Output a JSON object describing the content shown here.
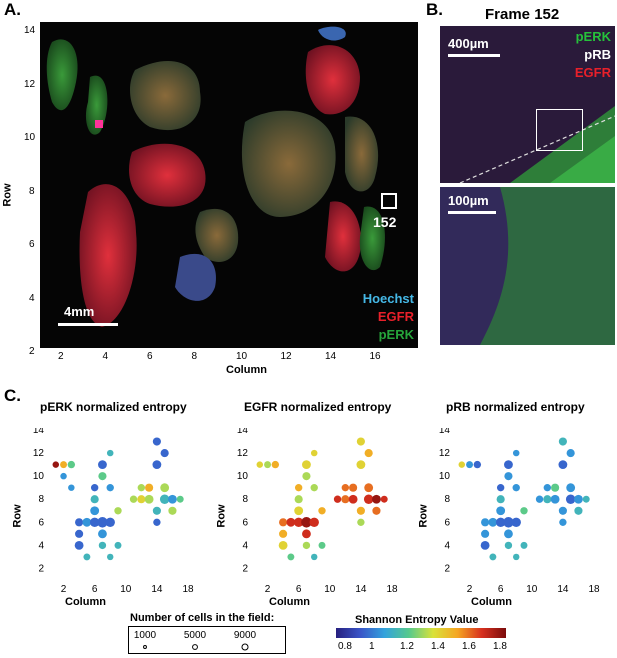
{
  "panel_a": {
    "letter": "A.",
    "xlabel": "Column",
    "ylabel": "Row",
    "xticks": [
      "2",
      "4",
      "6",
      "8",
      "10",
      "12",
      "14",
      "16"
    ],
    "yticks": [
      "14",
      "12",
      "10",
      "8",
      "6",
      "4",
      "2"
    ],
    "scalebar": "4mm",
    "frame_label": "152",
    "legend": [
      {
        "label": "Hoechst",
        "color": "#45b8e6"
      },
      {
        "label": "EGFR",
        "color": "#e8202a"
      },
      {
        "label": "pERK",
        "color": "#26a53b"
      }
    ]
  },
  "panel_b": {
    "letter": "B.",
    "title": "Frame 152",
    "scalebar_top": "400µm",
    "scalebar_bottom": "100µm",
    "legend": [
      {
        "label": "pERK",
        "color": "#26c13b"
      },
      {
        "label": "pRB",
        "color": "#ffffff"
      },
      {
        "label": "EGFR",
        "color": "#e8202a"
      }
    ]
  },
  "panel_c": {
    "letter": "C.",
    "size_legend_title": "Number of cells in the field:",
    "size_legend_values": [
      "1000",
      "5000",
      "9000"
    ],
    "colorbar_title": "Shannon Entropy Value",
    "colorbar_ticks": [
      "0.8",
      "1",
      "1.2",
      "1.4",
      "1.6",
      "1.8"
    ],
    "colorbar_colors": [
      "#27207f",
      "#3a55c8",
      "#33a3dd",
      "#56c98d",
      "#d9e23a",
      "#f5a623",
      "#d7301f",
      "#7a0b0b"
    ]
  },
  "chart_data": [
    {
      "type": "scatter",
      "title": "pERK normalized entropy",
      "xlabel": "Column",
      "ylabel": "Row",
      "xticks": [
        "2",
        "6",
        "10",
        "14",
        "18"
      ],
      "yticks": [
        "2",
        "4",
        "6",
        "8",
        "10",
        "12",
        "14"
      ],
      "xlim": [
        0,
        18
      ],
      "ylim": [
        1,
        14
      ],
      "points": [
        {
          "x": 1,
          "y": 11,
          "v": 1.8,
          "n": 2000
        },
        {
          "x": 2,
          "y": 11,
          "v": 1.5,
          "n": 2500
        },
        {
          "x": 3,
          "y": 11,
          "v": 1.2,
          "n": 3000
        },
        {
          "x": 2,
          "y": 10,
          "v": 1.0,
          "n": 2000
        },
        {
          "x": 3,
          "y": 9,
          "v": 1.0,
          "n": 2000
        },
        {
          "x": 4,
          "y": 6,
          "v": 0.9,
          "n": 4000
        },
        {
          "x": 4,
          "y": 5,
          "v": 0.9,
          "n": 4000
        },
        {
          "x": 4,
          "y": 4,
          "v": 0.9,
          "n": 5000
        },
        {
          "x": 5,
          "y": 3,
          "v": 1.1,
          "n": 2500
        },
        {
          "x": 5,
          "y": 6,
          "v": 1.0,
          "n": 5000
        },
        {
          "x": 6,
          "y": 6,
          "v": 0.9,
          "n": 6000
        },
        {
          "x": 6,
          "y": 7,
          "v": 1.0,
          "n": 5000
        },
        {
          "x": 6,
          "y": 8,
          "v": 1.1,
          "n": 4000
        },
        {
          "x": 6,
          "y": 9,
          "v": 0.9,
          "n": 3000
        },
        {
          "x": 7,
          "y": 11,
          "v": 0.9,
          "n": 5000
        },
        {
          "x": 7,
          "y": 10,
          "v": 1.2,
          "n": 4000
        },
        {
          "x": 7,
          "y": 6,
          "v": 0.9,
          "n": 8000
        },
        {
          "x": 7,
          "y": 5,
          "v": 1.0,
          "n": 5000
        },
        {
          "x": 7,
          "y": 4,
          "v": 1.1,
          "n": 3000
        },
        {
          "x": 8,
          "y": 12,
          "v": 1.1,
          "n": 2000
        },
        {
          "x": 8,
          "y": 9,
          "v": 1.0,
          "n": 3000
        },
        {
          "x": 8,
          "y": 6,
          "v": 0.9,
          "n": 6000
        },
        {
          "x": 8,
          "y": 3,
          "v": 1.1,
          "n": 2000
        },
        {
          "x": 9,
          "y": 7,
          "v": 1.3,
          "n": 3000
        },
        {
          "x": 9,
          "y": 4,
          "v": 1.1,
          "n": 2500
        },
        {
          "x": 11,
          "y": 8,
          "v": 1.3,
          "n": 3000
        },
        {
          "x": 12,
          "y": 8,
          "v": 1.4,
          "n": 4000
        },
        {
          "x": 12,
          "y": 9,
          "v": 1.3,
          "n": 3000
        },
        {
          "x": 13,
          "y": 8,
          "v": 1.3,
          "n": 5000
        },
        {
          "x": 13,
          "y": 9,
          "v": 1.5,
          "n": 4000
        },
        {
          "x": 14,
          "y": 7,
          "v": 1.1,
          "n": 4000
        },
        {
          "x": 14,
          "y": 13,
          "v": 0.9,
          "n": 4000
        },
        {
          "x": 14,
          "y": 11,
          "v": 0.9,
          "n": 5000
        },
        {
          "x": 14,
          "y": 6,
          "v": 0.9,
          "n": 3000
        },
        {
          "x": 15,
          "y": 12,
          "v": 0.9,
          "n": 4000
        },
        {
          "x": 15,
          "y": 9,
          "v": 1.3,
          "n": 5000
        },
        {
          "x": 15,
          "y": 8,
          "v": 1.1,
          "n": 6000
        },
        {
          "x": 16,
          "y": 8,
          "v": 1.0,
          "n": 5000
        },
        {
          "x": 16,
          "y": 7,
          "v": 1.3,
          "n": 4000
        },
        {
          "x": 17,
          "y": 8,
          "v": 1.2,
          "n": 2500
        }
      ]
    },
    {
      "type": "scatter",
      "title": "EGFR normalized entropy",
      "xlabel": "Column",
      "ylabel": "Row",
      "xticks": [
        "2",
        "6",
        "10",
        "14",
        "18"
      ],
      "yticks": [
        "2",
        "4",
        "6",
        "8",
        "10",
        "12",
        "14"
      ],
      "xlim": [
        0,
        18
      ],
      "ylim": [
        1,
        14
      ],
      "points": [
        {
          "x": 1,
          "y": 11,
          "v": 1.4,
          "n": 2000
        },
        {
          "x": 2,
          "y": 11,
          "v": 1.3,
          "n": 2500
        },
        {
          "x": 3,
          "y": 11,
          "v": 1.5,
          "n": 3000
        },
        {
          "x": 4,
          "y": 6,
          "v": 1.6,
          "n": 4000
        },
        {
          "x": 4,
          "y": 5,
          "v": 1.5,
          "n": 4000
        },
        {
          "x": 4,
          "y": 4,
          "v": 1.4,
          "n": 5000
        },
        {
          "x": 5,
          "y": 3,
          "v": 1.2,
          "n": 2500
        },
        {
          "x": 5,
          "y": 6,
          "v": 1.7,
          "n": 5000
        },
        {
          "x": 6,
          "y": 6,
          "v": 1.7,
          "n": 6000
        },
        {
          "x": 6,
          "y": 7,
          "v": 1.4,
          "n": 5000
        },
        {
          "x": 6,
          "y": 8,
          "v": 1.3,
          "n": 4000
        },
        {
          "x": 6,
          "y": 9,
          "v": 1.5,
          "n": 3000
        },
        {
          "x": 7,
          "y": 11,
          "v": 1.4,
          "n": 5000
        },
        {
          "x": 7,
          "y": 10,
          "v": 1.3,
          "n": 4000
        },
        {
          "x": 7,
          "y": 6,
          "v": 1.8,
          "n": 8000
        },
        {
          "x": 7,
          "y": 5,
          "v": 1.7,
          "n": 5000
        },
        {
          "x": 7,
          "y": 4,
          "v": 1.3,
          "n": 3000
        },
        {
          "x": 8,
          "y": 12,
          "v": 1.4,
          "n": 2000
        },
        {
          "x": 8,
          "y": 9,
          "v": 1.3,
          "n": 3000
        },
        {
          "x": 8,
          "y": 6,
          "v": 1.7,
          "n": 6000
        },
        {
          "x": 8,
          "y": 3,
          "v": 1.1,
          "n": 2000
        },
        {
          "x": 9,
          "y": 7,
          "v": 1.5,
          "n": 3000
        },
        {
          "x": 9,
          "y": 4,
          "v": 1.2,
          "n": 2500
        },
        {
          "x": 11,
          "y": 8,
          "v": 1.7,
          "n": 3000
        },
        {
          "x": 12,
          "y": 8,
          "v": 1.6,
          "n": 4000
        },
        {
          "x": 12,
          "y": 9,
          "v": 1.6,
          "n": 3000
        },
        {
          "x": 13,
          "y": 8,
          "v": 1.7,
          "n": 5000
        },
        {
          "x": 13,
          "y": 9,
          "v": 1.6,
          "n": 4000
        },
        {
          "x": 14,
          "y": 7,
          "v": 1.5,
          "n": 4000
        },
        {
          "x": 14,
          "y": 13,
          "v": 1.4,
          "n": 4000
        },
        {
          "x": 14,
          "y": 11,
          "v": 1.4,
          "n": 5000
        },
        {
          "x": 14,
          "y": 6,
          "v": 1.3,
          "n": 3000
        },
        {
          "x": 15,
          "y": 12,
          "v": 1.5,
          "n": 4000
        },
        {
          "x": 15,
          "y": 9,
          "v": 1.6,
          "n": 5000
        },
        {
          "x": 15,
          "y": 8,
          "v": 1.7,
          "n": 6000
        },
        {
          "x": 16,
          "y": 8,
          "v": 1.8,
          "n": 5000
        },
        {
          "x": 16,
          "y": 7,
          "v": 1.6,
          "n": 4000
        },
        {
          "x": 17,
          "y": 8,
          "v": 1.7,
          "n": 2500
        }
      ]
    },
    {
      "type": "scatter",
      "title": "pRB normalized entropy",
      "xlabel": "Column",
      "ylabel": "Row",
      "xticks": [
        "2",
        "6",
        "10",
        "14",
        "18"
      ],
      "yticks": [
        "2",
        "4",
        "6",
        "8",
        "10",
        "12",
        "14"
      ],
      "xlim": [
        0,
        18
      ],
      "ylim": [
        1,
        14
      ],
      "points": [
        {
          "x": 1,
          "y": 11,
          "v": 1.4,
          "n": 2000
        },
        {
          "x": 2,
          "y": 11,
          "v": 1.0,
          "n": 2500
        },
        {
          "x": 3,
          "y": 11,
          "v": 0.9,
          "n": 3000
        },
        {
          "x": 4,
          "y": 6,
          "v": 1.0,
          "n": 4000
        },
        {
          "x": 4,
          "y": 5,
          "v": 1.0,
          "n": 4000
        },
        {
          "x": 4,
          "y": 4,
          "v": 0.9,
          "n": 5000
        },
        {
          "x": 5,
          "y": 3,
          "v": 1.1,
          "n": 2500
        },
        {
          "x": 5,
          "y": 6,
          "v": 1.0,
          "n": 5000
        },
        {
          "x": 6,
          "y": 6,
          "v": 0.9,
          "n": 6000
        },
        {
          "x": 6,
          "y": 7,
          "v": 1.0,
          "n": 5000
        },
        {
          "x": 6,
          "y": 8,
          "v": 1.1,
          "n": 4000
        },
        {
          "x": 6,
          "y": 9,
          "v": 0.9,
          "n": 3000
        },
        {
          "x": 7,
          "y": 11,
          "v": 0.9,
          "n": 5000
        },
        {
          "x": 7,
          "y": 10,
          "v": 1.0,
          "n": 4000
        },
        {
          "x": 7,
          "y": 6,
          "v": 0.9,
          "n": 8000
        },
        {
          "x": 7,
          "y": 5,
          "v": 1.0,
          "n": 5000
        },
        {
          "x": 7,
          "y": 4,
          "v": 1.1,
          "n": 3000
        },
        {
          "x": 8,
          "y": 12,
          "v": 1.0,
          "n": 2000
        },
        {
          "x": 8,
          "y": 9,
          "v": 1.0,
          "n": 3000
        },
        {
          "x": 8,
          "y": 6,
          "v": 0.9,
          "n": 6000
        },
        {
          "x": 8,
          "y": 3,
          "v": 1.1,
          "n": 2000
        },
        {
          "x": 9,
          "y": 7,
          "v": 1.2,
          "n": 3000
        },
        {
          "x": 9,
          "y": 4,
          "v": 1.1,
          "n": 2500
        },
        {
          "x": 11,
          "y": 8,
          "v": 1.0,
          "n": 3000
        },
        {
          "x": 12,
          "y": 8,
          "v": 1.1,
          "n": 4000
        },
        {
          "x": 12,
          "y": 9,
          "v": 1.0,
          "n": 3000
        },
        {
          "x": 13,
          "y": 8,
          "v": 1.0,
          "n": 5000
        },
        {
          "x": 13,
          "y": 9,
          "v": 1.2,
          "n": 4000
        },
        {
          "x": 14,
          "y": 7,
          "v": 1.0,
          "n": 4000
        },
        {
          "x": 14,
          "y": 13,
          "v": 1.1,
          "n": 4000
        },
        {
          "x": 14,
          "y": 11,
          "v": 0.9,
          "n": 5000
        },
        {
          "x": 14,
          "y": 6,
          "v": 1.0,
          "n": 3000
        },
        {
          "x": 15,
          "y": 12,
          "v": 1.0,
          "n": 4000
        },
        {
          "x": 15,
          "y": 9,
          "v": 1.0,
          "n": 5000
        },
        {
          "x": 15,
          "y": 8,
          "v": 0.9,
          "n": 6000
        },
        {
          "x": 16,
          "y": 8,
          "v": 1.0,
          "n": 5000
        },
        {
          "x": 16,
          "y": 7,
          "v": 1.1,
          "n": 4000
        },
        {
          "x": 17,
          "y": 8,
          "v": 1.1,
          "n": 2500
        }
      ]
    }
  ]
}
